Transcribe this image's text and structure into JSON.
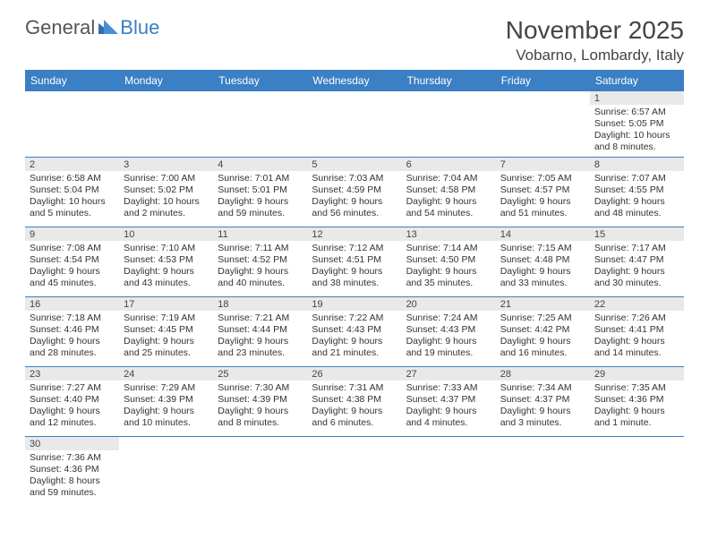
{
  "logo": {
    "part1": "General",
    "part2": "Blue"
  },
  "title": "November 2025",
  "location": "Vobarno, Lombardy, Italy",
  "colors": {
    "header_bg": "#3b7fc4",
    "header_fg": "#ffffff",
    "daynum_bg": "#e9e9e9",
    "row_border": "#3b7fc4"
  },
  "weekdays": [
    "Sunday",
    "Monday",
    "Tuesday",
    "Wednesday",
    "Thursday",
    "Friday",
    "Saturday"
  ],
  "weeks": [
    [
      null,
      null,
      null,
      null,
      null,
      null,
      {
        "n": "1",
        "sr": "6:57 AM",
        "ss": "5:05 PM",
        "dl": "10 hours and 8 minutes."
      }
    ],
    [
      {
        "n": "2",
        "sr": "6:58 AM",
        "ss": "5:04 PM",
        "dl": "10 hours and 5 minutes."
      },
      {
        "n": "3",
        "sr": "7:00 AM",
        "ss": "5:02 PM",
        "dl": "10 hours and 2 minutes."
      },
      {
        "n": "4",
        "sr": "7:01 AM",
        "ss": "5:01 PM",
        "dl": "9 hours and 59 minutes."
      },
      {
        "n": "5",
        "sr": "7:03 AM",
        "ss": "4:59 PM",
        "dl": "9 hours and 56 minutes."
      },
      {
        "n": "6",
        "sr": "7:04 AM",
        "ss": "4:58 PM",
        "dl": "9 hours and 54 minutes."
      },
      {
        "n": "7",
        "sr": "7:05 AM",
        "ss": "4:57 PM",
        "dl": "9 hours and 51 minutes."
      },
      {
        "n": "8",
        "sr": "7:07 AM",
        "ss": "4:55 PM",
        "dl": "9 hours and 48 minutes."
      }
    ],
    [
      {
        "n": "9",
        "sr": "7:08 AM",
        "ss": "4:54 PM",
        "dl": "9 hours and 45 minutes."
      },
      {
        "n": "10",
        "sr": "7:10 AM",
        "ss": "4:53 PM",
        "dl": "9 hours and 43 minutes."
      },
      {
        "n": "11",
        "sr": "7:11 AM",
        "ss": "4:52 PM",
        "dl": "9 hours and 40 minutes."
      },
      {
        "n": "12",
        "sr": "7:12 AM",
        "ss": "4:51 PM",
        "dl": "9 hours and 38 minutes."
      },
      {
        "n": "13",
        "sr": "7:14 AM",
        "ss": "4:50 PM",
        "dl": "9 hours and 35 minutes."
      },
      {
        "n": "14",
        "sr": "7:15 AM",
        "ss": "4:48 PM",
        "dl": "9 hours and 33 minutes."
      },
      {
        "n": "15",
        "sr": "7:17 AM",
        "ss": "4:47 PM",
        "dl": "9 hours and 30 minutes."
      }
    ],
    [
      {
        "n": "16",
        "sr": "7:18 AM",
        "ss": "4:46 PM",
        "dl": "9 hours and 28 minutes."
      },
      {
        "n": "17",
        "sr": "7:19 AM",
        "ss": "4:45 PM",
        "dl": "9 hours and 25 minutes."
      },
      {
        "n": "18",
        "sr": "7:21 AM",
        "ss": "4:44 PM",
        "dl": "9 hours and 23 minutes."
      },
      {
        "n": "19",
        "sr": "7:22 AM",
        "ss": "4:43 PM",
        "dl": "9 hours and 21 minutes."
      },
      {
        "n": "20",
        "sr": "7:24 AM",
        "ss": "4:43 PM",
        "dl": "9 hours and 19 minutes."
      },
      {
        "n": "21",
        "sr": "7:25 AM",
        "ss": "4:42 PM",
        "dl": "9 hours and 16 minutes."
      },
      {
        "n": "22",
        "sr": "7:26 AM",
        "ss": "4:41 PM",
        "dl": "9 hours and 14 minutes."
      }
    ],
    [
      {
        "n": "23",
        "sr": "7:27 AM",
        "ss": "4:40 PM",
        "dl": "9 hours and 12 minutes."
      },
      {
        "n": "24",
        "sr": "7:29 AM",
        "ss": "4:39 PM",
        "dl": "9 hours and 10 minutes."
      },
      {
        "n": "25",
        "sr": "7:30 AM",
        "ss": "4:39 PM",
        "dl": "9 hours and 8 minutes."
      },
      {
        "n": "26",
        "sr": "7:31 AM",
        "ss": "4:38 PM",
        "dl": "9 hours and 6 minutes."
      },
      {
        "n": "27",
        "sr": "7:33 AM",
        "ss": "4:37 PM",
        "dl": "9 hours and 4 minutes."
      },
      {
        "n": "28",
        "sr": "7:34 AM",
        "ss": "4:37 PM",
        "dl": "9 hours and 3 minutes."
      },
      {
        "n": "29",
        "sr": "7:35 AM",
        "ss": "4:36 PM",
        "dl": "9 hours and 1 minute."
      }
    ],
    [
      {
        "n": "30",
        "sr": "7:36 AM",
        "ss": "4:36 PM",
        "dl": "8 hours and 59 minutes."
      },
      null,
      null,
      null,
      null,
      null,
      null
    ]
  ],
  "labels": {
    "sunrise": "Sunrise: ",
    "sunset": "Sunset: ",
    "daylight": "Daylight: "
  }
}
